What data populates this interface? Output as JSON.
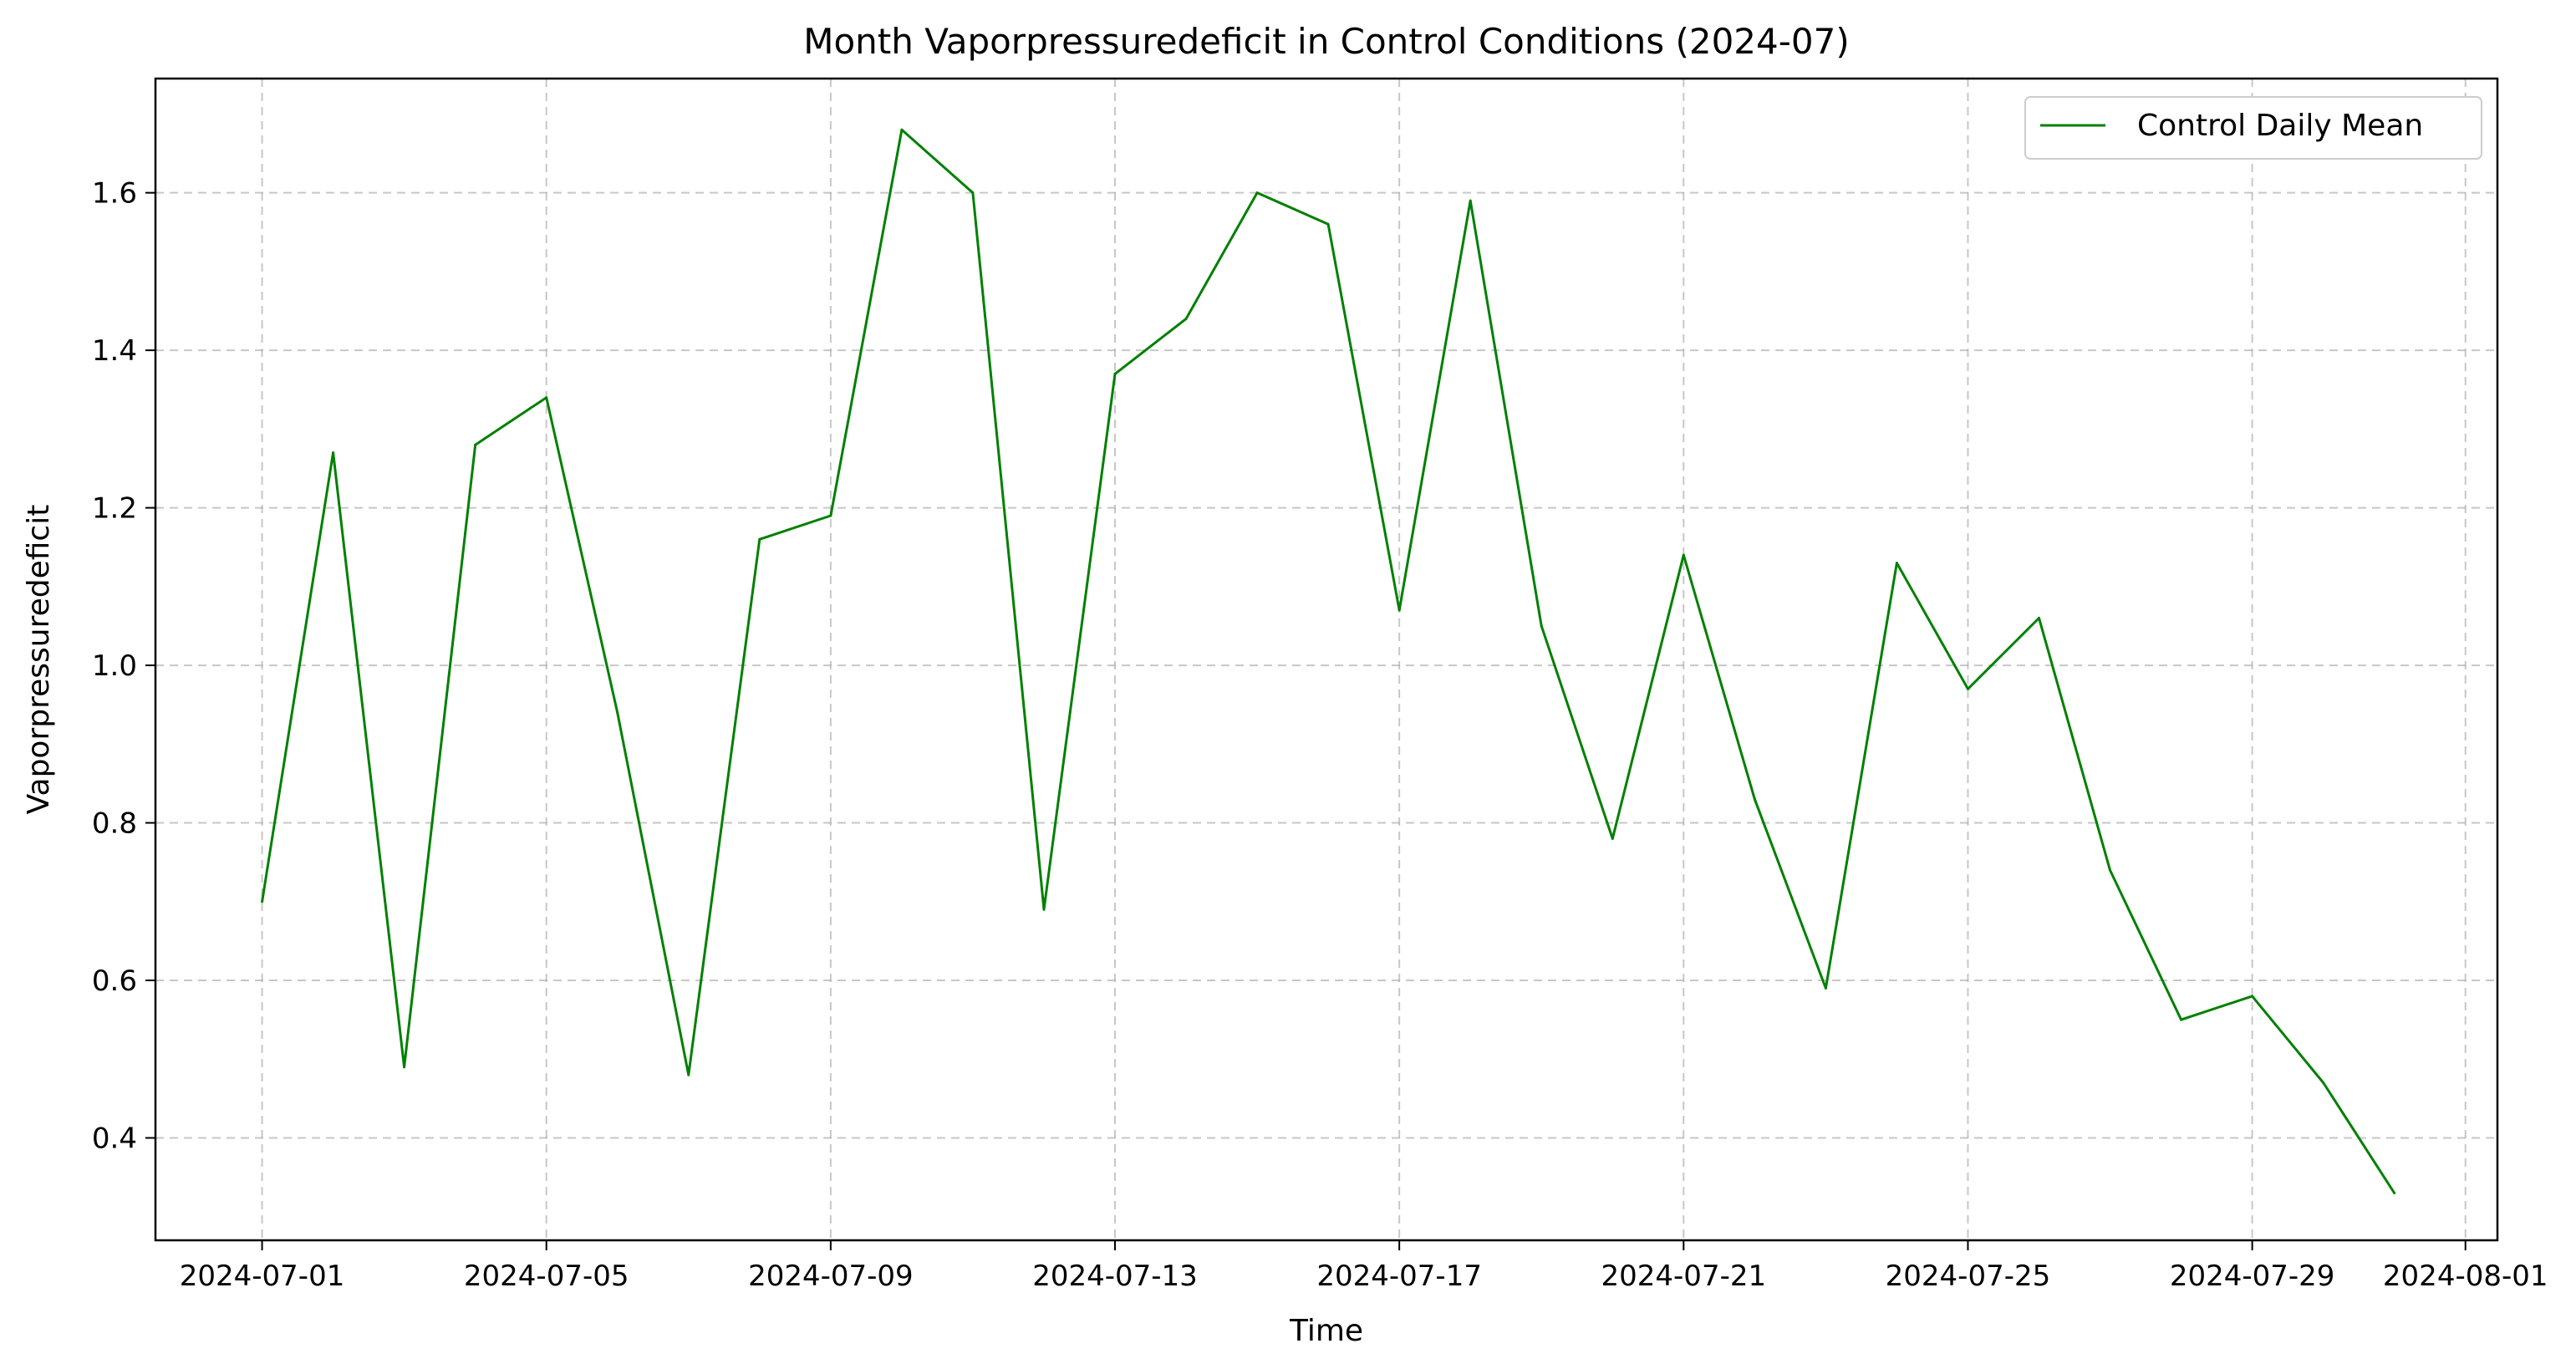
{
  "chart_data": {
    "type": "line",
    "title": "Month Vaporpressuredeficit in Control Conditions (2024-07)",
    "xlabel": "Time",
    "ylabel": "Vaporpressuredeficit",
    "xlim": [
      "2024-06-29.5",
      "2024-08-01.45"
    ],
    "ylim": [
      0.27,
      1.745
    ],
    "grid": true,
    "legend_position": "top-right",
    "x_ticks": [
      "2024-07-01",
      "2024-07-05",
      "2024-07-09",
      "2024-07-13",
      "2024-07-17",
      "2024-07-21",
      "2024-07-25",
      "2024-07-29",
      "2024-08-01"
    ],
    "y_ticks": [
      "0.4",
      "0.6",
      "0.8",
      "1.0",
      "1.2",
      "1.4",
      "1.6"
    ],
    "series": [
      {
        "name": "Control Daily Mean",
        "color": "#008000",
        "x": [
          "2024-07-01",
          "2024-07-02",
          "2024-07-03",
          "2024-07-04",
          "2024-07-05",
          "2024-07-06",
          "2024-07-07",
          "2024-07-08",
          "2024-07-09",
          "2024-07-10",
          "2024-07-11",
          "2024-07-12",
          "2024-07-13",
          "2024-07-14",
          "2024-07-15",
          "2024-07-16",
          "2024-07-17",
          "2024-07-18",
          "2024-07-19",
          "2024-07-20",
          "2024-07-21",
          "2024-07-22",
          "2024-07-23",
          "2024-07-24",
          "2024-07-25",
          "2024-07-26",
          "2024-07-27",
          "2024-07-28",
          "2024-07-29",
          "2024-07-30",
          "2024-07-31"
        ],
        "values": [
          0.7,
          1.27,
          0.49,
          1.28,
          1.34,
          0.94,
          0.48,
          1.16,
          1.19,
          1.68,
          1.6,
          0.69,
          1.37,
          1.44,
          1.6,
          1.56,
          1.07,
          1.59,
          1.05,
          0.78,
          1.14,
          0.83,
          0.59,
          1.13,
          0.97,
          1.06,
          0.74,
          0.55,
          0.58,
          0.47,
          0.33
        ]
      }
    ]
  }
}
